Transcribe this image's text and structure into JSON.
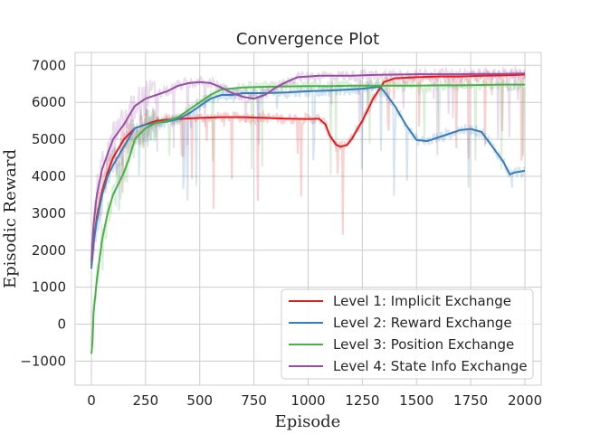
{
  "chart_data": {
    "type": "line",
    "title": "Convergence Plot",
    "xlabel": "Episode",
    "ylabel": "Episodic Reward",
    "xlim": [
      -75,
      2075
    ],
    "ylim": [
      -1650,
      7350
    ],
    "xticks": [
      0,
      250,
      500,
      750,
      1000,
      1250,
      1500,
      1750,
      2000
    ],
    "yticks": [
      -1000,
      0,
      1000,
      2000,
      3000,
      4000,
      5000,
      6000,
      7000
    ],
    "grid": true,
    "legend": "bottom-right",
    "series": [
      {
        "name": "Level 1: Implicit Exchange",
        "color": "#e41a1c",
        "x": [
          0,
          10,
          25,
          50,
          75,
          100,
          150,
          200,
          250,
          300,
          350,
          400,
          500,
          600,
          700,
          800,
          900,
          1000,
          1050,
          1080,
          1100,
          1130,
          1150,
          1180,
          1200,
          1250,
          1300,
          1350,
          1400,
          1500,
          1600,
          1700,
          1800,
          1900,
          2000
        ],
        "y": [
          1600,
          2200,
          2900,
          3600,
          4100,
          4500,
          5000,
          5300,
          5400,
          5500,
          5530,
          5550,
          5580,
          5600,
          5600,
          5580,
          5560,
          5550,
          5560,
          5400,
          5100,
          4850,
          4800,
          4850,
          5000,
          5500,
          6100,
          6550,
          6650,
          6680,
          6700,
          6700,
          6720,
          6730,
          6750
        ]
      },
      {
        "name": "Level 2: Reward Exchange",
        "color": "#377eb8",
        "x": [
          0,
          10,
          25,
          50,
          75,
          100,
          150,
          200,
          250,
          300,
          350,
          400,
          450,
          500,
          550,
          600,
          650,
          700,
          750,
          800,
          900,
          1000,
          1100,
          1200,
          1250,
          1300,
          1330,
          1350,
          1400,
          1450,
          1500,
          1550,
          1600,
          1650,
          1700,
          1750,
          1800,
          1850,
          1900,
          1930,
          1950,
          2000
        ],
        "y": [
          1500,
          2200,
          2800,
          3500,
          4000,
          4300,
          4800,
          5300,
          5400,
          5450,
          5480,
          5550,
          5700,
          5900,
          6100,
          6200,
          6200,
          6250,
          6250,
          6250,
          6270,
          6300,
          6320,
          6350,
          6370,
          6400,
          6420,
          6300,
          5900,
          5400,
          4980,
          4950,
          5050,
          5150,
          5250,
          5280,
          5200,
          4800,
          4400,
          4050,
          4100,
          4150
        ]
      },
      {
        "name": "Level 3: Position Exchange",
        "color": "#4daf4a",
        "x": [
          0,
          5,
          10,
          25,
          50,
          75,
          100,
          150,
          175,
          200,
          250,
          300,
          350,
          400,
          450,
          500,
          550,
          600,
          700,
          800,
          900,
          1000,
          1100,
          1200,
          1300,
          1400,
          1500,
          1600,
          1700,
          1800,
          1900,
          2000
        ],
        "y": [
          -800,
          -500,
          300,
          1200,
          2300,
          3000,
          3500,
          4100,
          4500,
          5000,
          5300,
          5450,
          5500,
          5600,
          5800,
          6000,
          6200,
          6350,
          6400,
          6420,
          6430,
          6440,
          6440,
          6450,
          6450,
          6450,
          6450,
          6460,
          6460,
          6470,
          6480,
          6480
        ]
      },
      {
        "name": "Level 4: State Info Exchange",
        "color": "#984ea3",
        "x": [
          0,
          10,
          25,
          50,
          75,
          100,
          150,
          200,
          250,
          300,
          350,
          400,
          450,
          500,
          550,
          600,
          650,
          700,
          750,
          800,
          850,
          900,
          950,
          1000,
          1050,
          1100,
          1200,
          1300,
          1400,
          1500,
          1600,
          1700,
          1800,
          1900,
          2000
        ],
        "y": [
          1700,
          2700,
          3500,
          4200,
          4600,
          5000,
          5400,
          5900,
          6100,
          6200,
          6300,
          6450,
          6520,
          6550,
          6520,
          6400,
          6250,
          6150,
          6100,
          6200,
          6400,
          6550,
          6680,
          6700,
          6720,
          6720,
          6720,
          6740,
          6750,
          6760,
          6760,
          6760,
          6770,
          6770,
          6780
        ]
      }
    ]
  }
}
